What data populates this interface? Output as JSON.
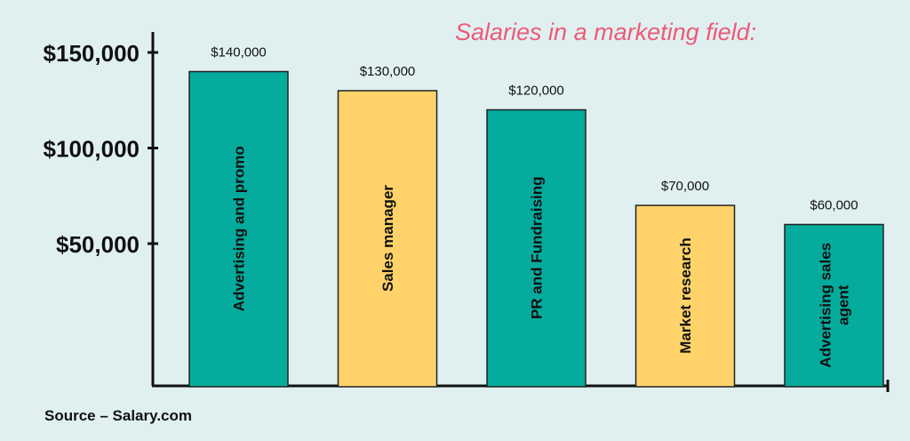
{
  "chart_data": {
    "type": "bar",
    "title": "Salaries in a marketing field:",
    "categories": [
      "Advertising and promo",
      "Sales manager",
      "PR and Fundraising",
      "Market research",
      "Advertising sales agent"
    ],
    "category_lines": [
      [
        "Advertising and promo"
      ],
      [
        "Sales manager"
      ],
      [
        "PR and Fundraising"
      ],
      [
        "Market research"
      ],
      [
        "Advertising sales",
        "agent"
      ]
    ],
    "values": [
      140000,
      130000,
      120000,
      70000,
      60000
    ],
    "value_labels": [
      "$140,000",
      "$130,000",
      "$120,000",
      "$70,000",
      "$60,000"
    ],
    "y_ticks": [
      50000,
      100000,
      150000
    ],
    "y_tick_labels": [
      "$50,000",
      "$100,000",
      "$150,000"
    ],
    "xlabel": "",
    "ylabel": "",
    "grid": false,
    "colors": [
      "#05ab9d",
      "#ffd36a",
      "#05ab9d",
      "#ffd36a",
      "#05ab9d"
    ],
    "title_color": "#ee5a78",
    "axis_color": "#111111"
  },
  "source": "Source – Salary.com"
}
